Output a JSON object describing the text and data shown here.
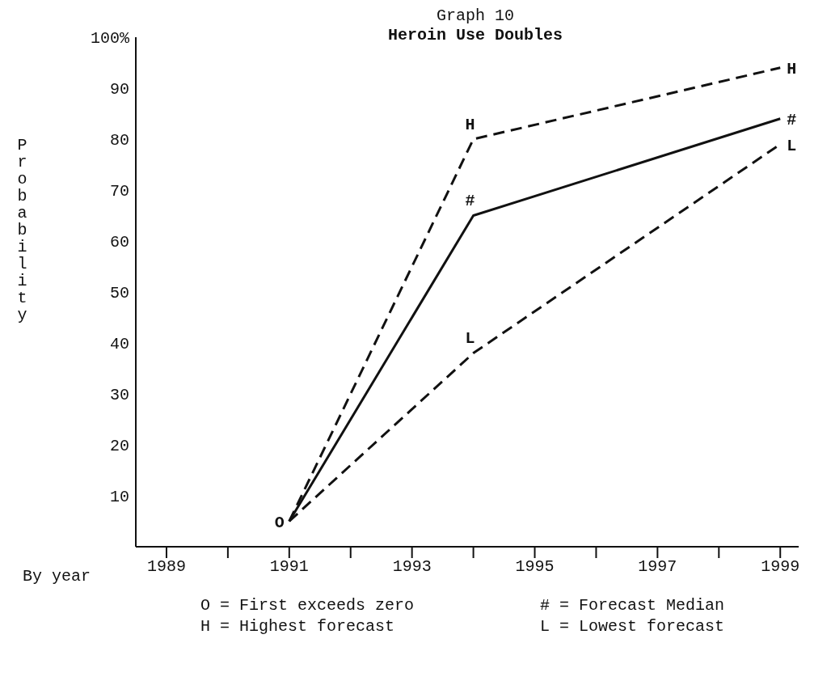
{
  "chart_data": {
    "type": "line",
    "title": "Graph 10",
    "subtitle": "Heroin Use Doubles",
    "xlabel": "By year",
    "ylabel": "Probability",
    "xlim": [
      1988.5,
      1999.3
    ],
    "ylim": [
      0,
      100
    ],
    "xticks": [
      1989,
      {
        "value": 1990,
        "label": null
      },
      1991,
      {
        "value": 1992,
        "label": null
      },
      1993,
      {
        "value": 1994,
        "label": null
      },
      1995,
      {
        "value": 1996,
        "label": null
      },
      1997,
      {
        "value": 1998,
        "label": null
      },
      1999
    ],
    "yticks": [
      {
        "value": 10,
        "label": "10"
      },
      20,
      30,
      40,
      50,
      60,
      70,
      80,
      90,
      {
        "value": 100,
        "label": "100%"
      }
    ],
    "grid": false,
    "series": [
      {
        "color": "#111111",
        "line_style": "dashed",
        "x": [
          1991,
          1994,
          1999
        ],
        "values": [
          5,
          80,
          94
        ]
      },
      {
        "color": "#111111",
        "line_style": "solid",
        "x": [
          1991,
          1994,
          1999
        ],
        "values": [
          5,
          65,
          84
        ]
      },
      {
        "color": "#111111",
        "line_style": "dashed",
        "x": [
          1991,
          1994,
          1999
        ],
        "values": [
          5,
          38,
          79
        ]
      }
    ],
    "annotations": [
      {
        "text": "O",
        "x": 1991,
        "y": 5
      },
      {
        "text": "H",
        "x": 1994,
        "y": 80
      },
      {
        "text": "#",
        "x": 1994,
        "y": 65
      },
      {
        "text": "L",
        "x": 1994,
        "y": 38
      },
      {
        "text": "H",
        "x": 1999,
        "y": 94
      },
      {
        "text": "#",
        "x": 1999,
        "y": 84
      },
      {
        "text": "L",
        "x": 1999,
        "y": 79
      },
      "O = First exceeds zero",
      "# = Forecast Median",
      "H = Highest forecast",
      "L = Lowest forecast"
    ]
  }
}
